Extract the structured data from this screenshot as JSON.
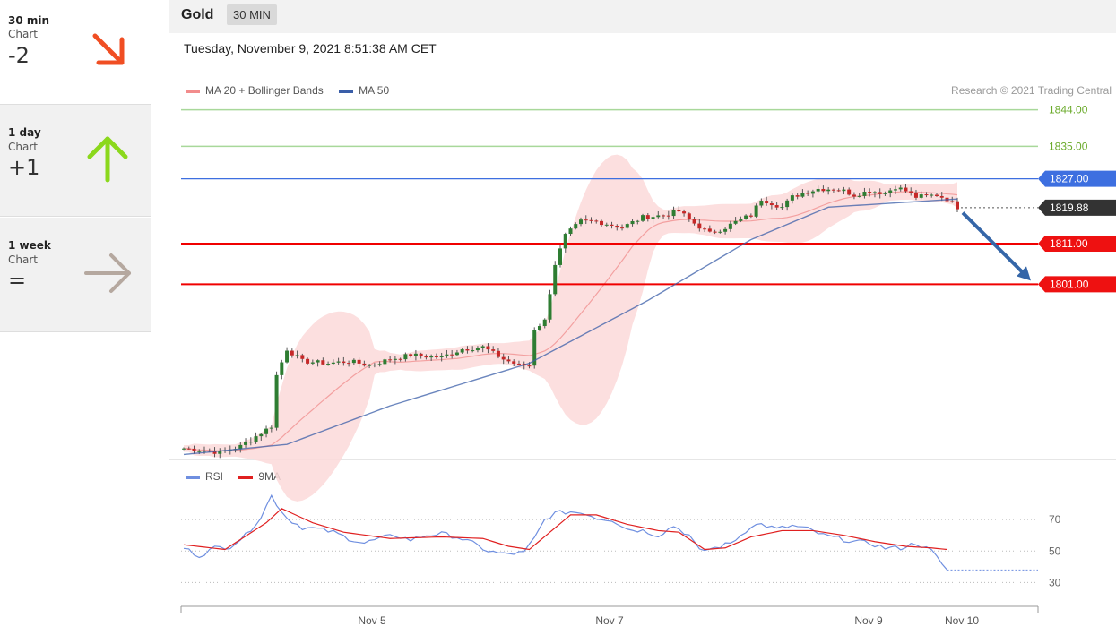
{
  "sidebar": {
    "signals": [
      {
        "period": "30 min",
        "label": "Chart",
        "score": "-2",
        "direction": "down",
        "color": "#f04e23"
      },
      {
        "period": "1 day",
        "label": "Chart",
        "score": "+1",
        "direction": "up",
        "color": "#8bd81c"
      },
      {
        "period": "1 week",
        "label": "Chart",
        "score": "=",
        "direction": "right",
        "color": "#b5a89f"
      }
    ]
  },
  "header": {
    "instrument": "Gold",
    "timeframe": "30 MIN",
    "datetime": "Tuesday, November 9, 2021 8:51:38 AM CET",
    "credit": "Research © 2021 Trading Central"
  },
  "legend": {
    "price": [
      {
        "label": "MA 20 + Bollinger Bands",
        "color": "#f28c8c"
      },
      {
        "label": "MA 50",
        "color": "#3a5ea8"
      }
    ],
    "rsi": [
      {
        "label": "RSI",
        "color": "#6f8fe0"
      },
      {
        "label": "9MA",
        "color": "#e02020"
      }
    ]
  },
  "colors": {
    "bull": "#2e7d32",
    "bear": "#c62828",
    "target_green": "#a8d89a",
    "resistance_blue": "#3d6fe0",
    "support_red": "#f00000",
    "last_price": "#333333",
    "band_fill": "#fcd9d9"
  },
  "chart_data": [
    {
      "type": "line",
      "title": "Gold 30 MIN",
      "x_labels": [
        "Nov 5",
        "Nov 7",
        "Nov 9",
        "Nov 10"
      ],
      "ylim": [
        1758,
        1849
      ],
      "levels": [
        {
          "value": 1844.0,
          "label": "1844.00",
          "kind": "target"
        },
        {
          "value": 1835.0,
          "label": "1835.00",
          "kind": "target"
        },
        {
          "value": 1827.0,
          "label": "1827.00",
          "kind": "resistance"
        },
        {
          "value": 1819.88,
          "label": "1819.88",
          "kind": "last"
        },
        {
          "value": 1811.0,
          "label": "1811.00",
          "kind": "support"
        },
        {
          "value": 1801.0,
          "label": "1801.00",
          "kind": "support"
        }
      ],
      "close_keypoints": [
        [
          0,
          1760.5
        ],
        [
          4,
          1760.0
        ],
        [
          7,
          1759.5
        ],
        [
          11,
          1761.0
        ],
        [
          14,
          1763.5
        ],
        [
          17,
          1766.0
        ],
        [
          18,
          1778.5
        ],
        [
          20,
          1785.0
        ],
        [
          23,
          1782.0
        ],
        [
          28,
          1781.5
        ],
        [
          32,
          1782.0
        ],
        [
          36,
          1781.0
        ],
        [
          40,
          1782.5
        ],
        [
          44,
          1783.5
        ],
        [
          50,
          1783.0
        ],
        [
          54,
          1785.0
        ],
        [
          58,
          1785.5
        ],
        [
          62,
          1782.5
        ],
        [
          65,
          1781.0
        ],
        [
          67,
          1781.0
        ],
        [
          68,
          1790.0
        ],
        [
          70,
          1792.0
        ],
        [
          72,
          1806.0
        ],
        [
          74,
          1813.0
        ],
        [
          77,
          1816.5
        ],
        [
          80,
          1816.5
        ],
        [
          85,
          1815.0
        ],
        [
          89,
          1817.5
        ],
        [
          93,
          1818.0
        ],
        [
          96,
          1819.0
        ],
        [
          99,
          1816.0
        ],
        [
          102,
          1813.5
        ],
        [
          105,
          1815.0
        ],
        [
          108,
          1817.0
        ],
        [
          110,
          1818.0
        ],
        [
          112,
          1822.0
        ],
        [
          114,
          1821.0
        ],
        [
          116,
          1820.0
        ],
        [
          118,
          1822.5
        ],
        [
          120,
          1823.5
        ],
        [
          123,
          1824.5
        ],
        [
          126,
          1824.5
        ],
        [
          128,
          1824.0
        ],
        [
          130,
          1823.0
        ],
        [
          133,
          1824.0
        ],
        [
          136,
          1823.5
        ],
        [
          138,
          1825.0
        ],
        [
          140,
          1824.0
        ],
        [
          142,
          1822.5
        ],
        [
          146,
          1823.0
        ],
        [
          148,
          1822.0
        ],
        [
          150,
          1820.0
        ]
      ],
      "ma50_keypoints": [
        [
          0,
          1759.0
        ],
        [
          20,
          1761.5
        ],
        [
          40,
          1771.0
        ],
        [
          67,
          1781.5
        ],
        [
          90,
          1797.0
        ],
        [
          110,
          1812.0
        ],
        [
          125,
          1820.0
        ],
        [
          150,
          1822.0
        ]
      ],
      "projection": {
        "from": 1819.5,
        "to": 1801.0
      }
    },
    {
      "type": "line",
      "title": "RSI",
      "yticks": [
        30,
        50,
        70
      ],
      "ylim": [
        20,
        90
      ],
      "rsi_keypoints": [
        [
          0,
          52
        ],
        [
          3,
          47
        ],
        [
          6,
          52
        ],
        [
          9,
          53
        ],
        [
          12,
          60
        ],
        [
          15,
          72
        ],
        [
          17,
          85
        ],
        [
          18,
          80
        ],
        [
          20,
          71
        ],
        [
          23,
          65
        ],
        [
          26,
          64
        ],
        [
          29,
          62
        ],
        [
          32,
          58
        ],
        [
          35,
          55
        ],
        [
          38,
          58
        ],
        [
          41,
          60
        ],
        [
          44,
          57
        ],
        [
          47,
          60
        ],
        [
          50,
          61
        ],
        [
          53,
          59
        ],
        [
          56,
          55
        ],
        [
          59,
          50
        ],
        [
          62,
          48
        ],
        [
          66,
          49
        ],
        [
          68,
          58
        ],
        [
          70,
          70
        ],
        [
          72,
          74
        ],
        [
          75,
          75
        ],
        [
          78,
          74
        ],
        [
          80,
          71
        ],
        [
          83,
          70
        ],
        [
          86,
          64
        ],
        [
          89,
          63
        ],
        [
          92,
          60
        ],
        [
          95,
          66
        ],
        [
          98,
          60
        ],
        [
          100,
          50
        ],
        [
          103,
          52
        ],
        [
          106,
          55
        ],
        [
          108,
          60
        ],
        [
          110,
          66
        ],
        [
          112,
          67
        ],
        [
          115,
          64
        ],
        [
          118,
          66
        ],
        [
          121,
          64
        ],
        [
          124,
          60
        ],
        [
          127,
          58
        ],
        [
          130,
          56
        ],
        [
          133,
          55
        ],
        [
          136,
          52
        ],
        [
          139,
          52
        ],
        [
          142,
          55
        ],
        [
          145,
          50
        ],
        [
          148,
          38
        ]
      ],
      "ma9_keypoints": [
        [
          0,
          54
        ],
        [
          8,
          51
        ],
        [
          16,
          68
        ],
        [
          19,
          77
        ],
        [
          25,
          68
        ],
        [
          31,
          62
        ],
        [
          40,
          58
        ],
        [
          50,
          59
        ],
        [
          58,
          58
        ],
        [
          63,
          53
        ],
        [
          67,
          51
        ],
        [
          71,
          62
        ],
        [
          75,
          73
        ],
        [
          80,
          73
        ],
        [
          86,
          67
        ],
        [
          92,
          63
        ],
        [
          96,
          62
        ],
        [
          101,
          51
        ],
        [
          105,
          52
        ],
        [
          110,
          59
        ],
        [
          116,
          63
        ],
        [
          122,
          63
        ],
        [
          128,
          60
        ],
        [
          134,
          56
        ],
        [
          140,
          53
        ],
        [
          145,
          52
        ],
        [
          148,
          51
        ]
      ],
      "projection_value": 38
    }
  ]
}
